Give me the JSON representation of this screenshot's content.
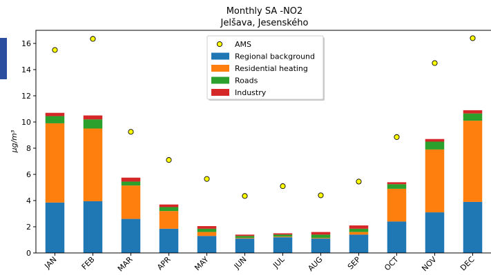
{
  "chart_data": {
    "type": "bar",
    "stacked": true,
    "title": "Monthly SA -NO2",
    "subtitle": "Jelšava, Jesenského",
    "ylabel": "μg/m³",
    "ylim": [
      0,
      17
    ],
    "yticks": [
      0,
      2,
      4,
      6,
      8,
      10,
      12,
      14,
      16
    ],
    "grid": false,
    "legend_position": "top-center",
    "categories": [
      "JAN",
      "FEB",
      "MAR",
      "APR",
      "MAY",
      "JUN",
      "JUL",
      "AUG",
      "SEP",
      "OCT",
      "NOV",
      "DEC"
    ],
    "series": [
      {
        "name": "Regional background",
        "color": "#1f77b4",
        "values": [
          3.85,
          3.95,
          2.6,
          1.85,
          1.3,
          1.1,
          1.2,
          1.1,
          1.4,
          2.4,
          3.1,
          3.9
        ]
      },
      {
        "name": "Residential heating",
        "color": "#ff7f0e",
        "values": [
          6.05,
          5.55,
          2.55,
          1.35,
          0.3,
          0.05,
          0.05,
          0.05,
          0.2,
          2.5,
          4.8,
          6.2
        ]
      },
      {
        "name": "Roads",
        "color": "#2ca02c",
        "values": [
          0.55,
          0.7,
          0.3,
          0.3,
          0.25,
          0.15,
          0.15,
          0.25,
          0.25,
          0.35,
          0.6,
          0.55
        ]
      },
      {
        "name": "Industry",
        "color": "#d62728",
        "values": [
          0.25,
          0.3,
          0.3,
          0.2,
          0.2,
          0.1,
          0.1,
          0.2,
          0.25,
          0.15,
          0.2,
          0.25
        ]
      }
    ],
    "points": {
      "name": "AMS",
      "type": "scatter",
      "color": "#ffff00",
      "edge_color": "#000000",
      "values": [
        15.5,
        16.35,
        9.25,
        7.1,
        5.65,
        4.35,
        5.1,
        4.4,
        5.45,
        8.85,
        14.5,
        16.4
      ]
    }
  }
}
